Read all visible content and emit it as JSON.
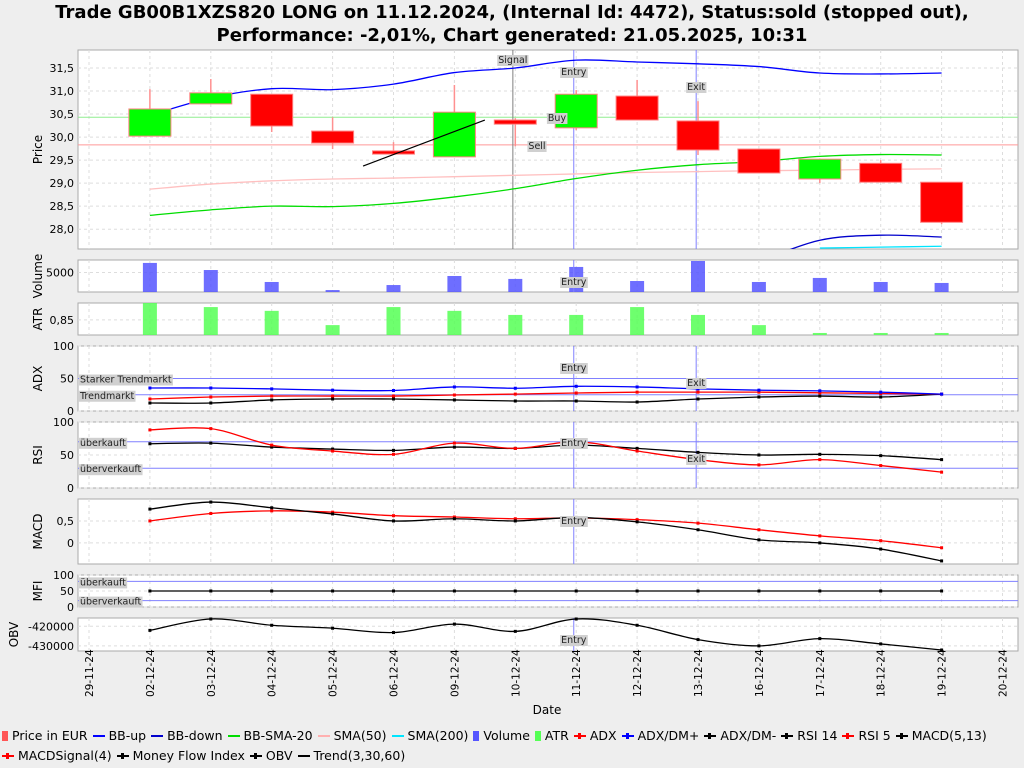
{
  "title": {
    "line1": "Trade GB00B1XZS820 LONG on 11.12.2024, (Internal Id: 4472), Status:sold (stopped out),",
    "line2": "Performance: -2,01%, Chart generated: 21.05.2025, 10:31"
  },
  "chart_data": {
    "type": "candlestick-with-indicators",
    "xlabel": "Date",
    "dates": [
      "29-11-24",
      "02-12-24",
      "03-12-24",
      "04-12-24",
      "05-12-24",
      "06-12-24",
      "09-12-24",
      "10-12-24",
      "11-12-24",
      "12-12-24",
      "13-12-24",
      "16-12-24",
      "17-12-24",
      "18-12-24",
      "19-12-24",
      "20-12-24"
    ],
    "grid": true,
    "price": {
      "ylabel": "Price",
      "yticks": [
        "28,0",
        "28,5",
        "29,0",
        "29,5",
        "30,0",
        "30,5",
        "31,0",
        "31,5"
      ],
      "ylim": [
        27.57,
        31.89
      ],
      "candles": [
        null,
        {
          "open": 30.02,
          "high": 31.04,
          "low": 30.02,
          "close": 30.61
        },
        {
          "open": 30.72,
          "high": 31.26,
          "low": 30.72,
          "close": 30.96
        },
        {
          "open": 30.93,
          "high": 30.93,
          "low": 30.11,
          "close": 30.24
        },
        {
          "open": 30.13,
          "high": 30.43,
          "low": 29.74,
          "close": 29.87
        },
        {
          "open": 29.7,
          "high": 29.89,
          "low": 29.63,
          "close": 29.63
        },
        {
          "open": 29.57,
          "high": 31.13,
          "low": 29.57,
          "close": 30.54
        },
        {
          "open": 30.37,
          "high": 30.41,
          "low": 29.8,
          "close": 30.28
        },
        {
          "open": 30.2,
          "high": 31.02,
          "low": 30.15,
          "close": 30.93
        },
        {
          "open": 30.89,
          "high": 31.24,
          "low": 30.37,
          "close": 30.37
        },
        {
          "open": 30.35,
          "high": 30.78,
          "low": 29.61,
          "close": 29.72
        },
        {
          "open": 29.74,
          "high": 29.74,
          "low": 29.22,
          "close": 29.22
        },
        {
          "open": 29.09,
          "high": 29.52,
          "low": 29.0,
          "close": 29.52
        },
        {
          "open": 29.43,
          "high": 29.5,
          "low": 29.02,
          "close": 29.02
        },
        {
          "open": 29.02,
          "high": 29.02,
          "low": 28.11,
          "close": 28.15
        }
      ],
      "bb_up": [
        null,
        30.47,
        30.85,
        31.05,
        31.03,
        31.15,
        31.4,
        31.5,
        31.67,
        31.63,
        31.59,
        31.53,
        31.39,
        31.37,
        31.39
      ],
      "bb_down": [
        null,
        null,
        null,
        null,
        null,
        null,
        null,
        null,
        null,
        null,
        null,
        27.3,
        27.76,
        27.87,
        27.83
      ],
      "bb_sma20": [
        null,
        28.3,
        28.42,
        28.5,
        28.49,
        28.56,
        28.7,
        28.88,
        29.1,
        29.28,
        29.4,
        29.47,
        29.58,
        29.62,
        29.61
      ],
      "sma50": [
        null,
        28.87,
        28.98,
        29.05,
        29.09,
        29.11,
        29.14,
        29.17,
        29.2,
        29.23,
        29.25,
        29.27,
        29.28,
        29.3,
        29.31
      ],
      "sma200": [
        null,
        null,
        null,
        null,
        null,
        null,
        null,
        null,
        null,
        null,
        null,
        null,
        27.59,
        27.61,
        27.63
      ],
      "buy_level": 30.43,
      "sell_level": 29.83,
      "trend": {
        "name": "Trend(3,30,60)",
        "from": [
          4.5,
          29.37
        ],
        "to": [
          6.5,
          30.37
        ]
      },
      "markers": [
        {
          "label": "Signal",
          "index": 6.96,
          "color": "#808080"
        },
        {
          "label": "Entry",
          "index": 7.96,
          "color": "#8080ff"
        },
        {
          "label": "Exit",
          "index": 9.97,
          "color": "#8080ff"
        }
      ],
      "level_labels": {
        "buy": "Buy",
        "sell": "Sell"
      }
    },
    "volume": {
      "ylabel": "Volume",
      "yticks": [
        "5000"
      ],
      "ylim": [
        3600,
        5900
      ],
      "values": [
        null,
        5690,
        5180,
        4320,
        3740,
        4100,
        4750,
        4540,
        5400,
        4390,
        5830,
        4320,
        4610,
        4320,
        4250
      ],
      "marker_label": "Entry"
    },
    "atr": {
      "ylabel": "ATR",
      "yticks": [
        "0,85"
      ],
      "ylim": [
        0.798,
        0.908
      ],
      "values": [
        null,
        0.91,
        0.894,
        0.881,
        0.832,
        0.894,
        0.881,
        0.867,
        0.867,
        0.894,
        0.867,
        0.832,
        0.805,
        0.805,
        0.805
      ]
    },
    "adx": {
      "ylabel": "ADX",
      "yticks": [
        "0",
        "50",
        "100"
      ],
      "ylim": [
        0,
        100
      ],
      "levels": [
        {
          "value": 50,
          "label": "Starker Trendmarkt"
        },
        {
          "value": 25,
          "label": "Trendmarkt"
        }
      ],
      "adx": [
        null,
        18.5,
        21.5,
        23,
        23,
        23,
        24.6,
        26,
        27.7,
        29,
        29,
        29,
        28,
        27,
        26
      ],
      "dm_plus": [
        null,
        35.4,
        35.4,
        34,
        32,
        31.5,
        37,
        35,
        38,
        37,
        34,
        32,
        31,
        29,
        26
      ],
      "dm_minus": [
        null,
        12.3,
        12.3,
        17,
        18.5,
        18.5,
        17,
        15.4,
        15.4,
        13.8,
        18.5,
        21.5,
        23,
        21.5,
        26
      ],
      "marker_labels": [
        "Entry",
        "Exit"
      ]
    },
    "rsi": {
      "ylabel": "RSI",
      "yticks": [
        "0",
        "50",
        "100"
      ],
      "ylim": [
        0,
        100
      ],
      "levels": [
        {
          "value": 70,
          "label": "überkauft"
        },
        {
          "value": 30,
          "label": "überverkauft"
        }
      ],
      "rsi14": [
        null,
        67,
        68,
        62,
        59,
        57,
        62,
        60,
        65,
        60,
        54,
        50,
        51,
        49,
        43
      ],
      "rsi5": [
        null,
        88,
        90,
        65,
        56,
        51,
        68,
        60,
        70,
        56,
        43,
        35,
        43,
        34,
        24
      ],
      "marker_labels": [
        "Entry",
        "Exit"
      ]
    },
    "macd": {
      "ylabel": "MACD",
      "yticks": [
        "0",
        "0,5"
      ],
      "ylim": [
        -0.48,
        1.0
      ],
      "macd": [
        null,
        0.77,
        0.93,
        0.8,
        0.66,
        0.5,
        0.55,
        0.5,
        0.58,
        0.48,
        0.3,
        0.07,
        0.0,
        -0.14,
        -0.41
      ],
      "signal": [
        null,
        0.5,
        0.67,
        0.73,
        0.7,
        0.62,
        0.59,
        0.55,
        0.57,
        0.53,
        0.45,
        0.3,
        0.16,
        0.05,
        -0.11
      ],
      "marker_label": "Entry"
    },
    "mfi": {
      "ylabel": "MFI",
      "yticks": [
        "0",
        "50",
        "100"
      ],
      "ylim": [
        0,
        100
      ],
      "levels": [
        {
          "value": 80,
          "label": "überkauft"
        },
        {
          "value": 20,
          "label": "überverkauft"
        }
      ],
      "values": [
        null,
        50,
        50,
        50,
        50,
        50,
        50,
        50,
        50,
        50,
        50,
        50,
        50,
        50,
        50
      ]
    },
    "obv": {
      "ylabel": "OBV",
      "yticks": [
        "-420000",
        "-430000"
      ],
      "ylim": [
        -432600,
        -415800
      ],
      "values": [
        null,
        -422100,
        -416300,
        -419500,
        -421000,
        -423200,
        -418900,
        -422600,
        -416300,
        -419500,
        -426800,
        -430000,
        -426300,
        -429000,
        -432100
      ],
      "marker_label": "Entry"
    },
    "legend": [
      {
        "label": "Price in EUR",
        "color": "#ff5555",
        "kind": "box"
      },
      {
        "label": "BB-up",
        "color": "#0000ff",
        "kind": "line"
      },
      {
        "label": "BB-down",
        "color": "#0000cc",
        "kind": "line"
      },
      {
        "label": "BB-SMA-20",
        "color": "#00dd00",
        "kind": "line"
      },
      {
        "label": "SMA(50)",
        "color": "#ffb0b0",
        "kind": "line"
      },
      {
        "label": "SMA(200)",
        "color": "#00e5ff",
        "kind": "line"
      },
      {
        "label": "Volume",
        "color": "#5555ff",
        "kind": "box"
      },
      {
        "label": "ATR",
        "color": "#55ff55",
        "kind": "box"
      },
      {
        "label": "ADX",
        "color": "#ff0000",
        "kind": "mk"
      },
      {
        "label": "ADX/DM+",
        "color": "#0000ff",
        "kind": "mk"
      },
      {
        "label": "ADX/DM-",
        "color": "#000000",
        "kind": "mk"
      },
      {
        "label": "RSI 14",
        "color": "#000000",
        "kind": "mk"
      },
      {
        "label": "RSI 5",
        "color": "#ff0000",
        "kind": "mk"
      },
      {
        "label": "MACD(5,13)",
        "color": "#000000",
        "kind": "mk"
      },
      {
        "label": "MACDSignal(4)",
        "color": "#ff0000",
        "kind": "mk"
      },
      {
        "label": "Money Flow Index",
        "color": "#000000",
        "kind": "mk"
      },
      {
        "label": "OBV",
        "color": "#000000",
        "kind": "mk"
      },
      {
        "label": "Trend(3,30,60)",
        "color": "#000000",
        "kind": "line"
      }
    ],
    "colors": {
      "up": "#00ff00",
      "down": "#ff0000",
      "wick": "#ff9090"
    }
  }
}
